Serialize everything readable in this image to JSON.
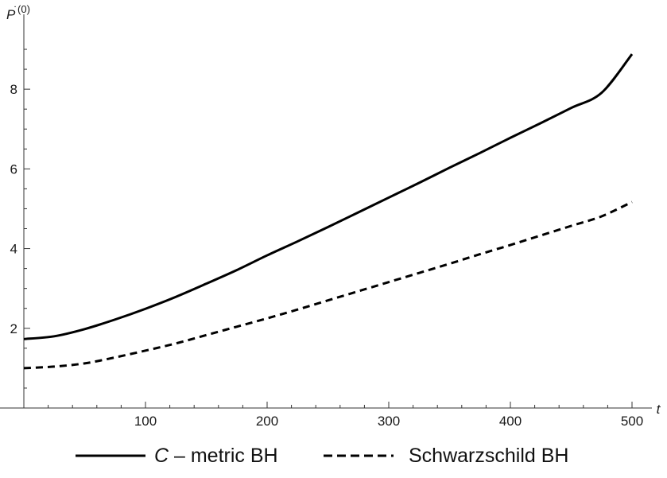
{
  "chart_data": {
    "type": "line",
    "xlabel": "t",
    "ylabel": "P˙(0)",
    "ylabel_base": "P",
    "ylabel_mark": "˙",
    "ylabel_sup": "(0)",
    "xlim": [
      0,
      500
    ],
    "ylim": [
      0,
      9.2
    ],
    "x_ticks": [
      100,
      200,
      300,
      400,
      500
    ],
    "y_ticks": [
      2,
      4,
      6,
      8
    ],
    "x_tick_labels": [
      "100",
      "200",
      "300",
      "400",
      "500"
    ],
    "y_tick_labels": [
      "2",
      "4",
      "6",
      "8"
    ],
    "grid": false,
    "legend_position": "bottom",
    "x": [
      0,
      25,
      50,
      75,
      100,
      125,
      150,
      175,
      200,
      225,
      250,
      275,
      300,
      325,
      350,
      375,
      400,
      425,
      450,
      475,
      500
    ],
    "series": [
      {
        "name": "C – metric BH",
        "legend_italic": "C",
        "legend_rest": " – metric BH",
        "style": "solid",
        "color": "#000000",
        "values": [
          1.73,
          1.8,
          1.98,
          2.22,
          2.49,
          2.79,
          3.12,
          3.46,
          3.83,
          4.18,
          4.54,
          4.91,
          5.28,
          5.65,
          6.03,
          6.4,
          6.78,
          7.15,
          7.53,
          7.91,
          8.88
        ]
      },
      {
        "name": "Schwarzschild BH",
        "style": "dashed",
        "color": "#000000",
        "values": [
          1.0,
          1.04,
          1.12,
          1.27,
          1.44,
          1.62,
          1.83,
          2.04,
          2.25,
          2.47,
          2.7,
          2.93,
          3.16,
          3.39,
          3.62,
          3.86,
          4.09,
          4.33,
          4.57,
          4.81,
          5.17
        ]
      }
    ]
  }
}
